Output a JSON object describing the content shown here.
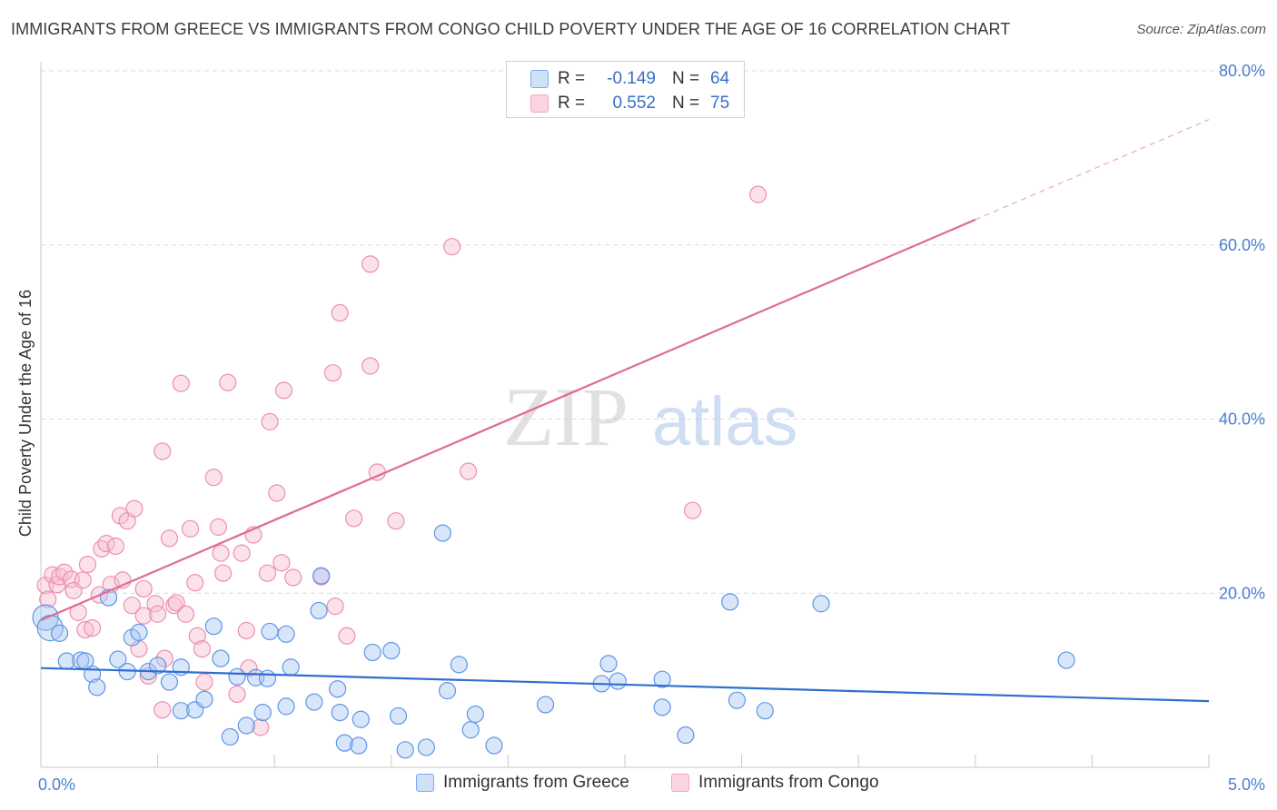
{
  "title": "IMMIGRANTS FROM GREECE VS IMMIGRANTS FROM CONGO CHILD POVERTY UNDER THE AGE OF 16 CORRELATION CHART",
  "source": "Source: ZipAtlas.com",
  "watermark": {
    "zip": "ZIP",
    "atlas": "atlas"
  },
  "correlation_box": {
    "rows": [
      {
        "r_label": "R =",
        "r_value": "-0.149",
        "n_label": "N =",
        "n_value": "64",
        "color": "#7aaaf0"
      },
      {
        "r_label": "R =",
        "r_value": "0.552",
        "n_label": "N =",
        "n_value": "75",
        "color": "#f4a6be"
      }
    ]
  },
  "legend": [
    {
      "label": "Immigrants from Greece",
      "color": "#7aaaf0"
    },
    {
      "label": "Immigrants from Congo",
      "color": "#f4a6be"
    }
  ],
  "chart_data": {
    "type": "scatter",
    "title": "IMMIGRANTS FROM GREECE VS IMMIGRANTS FROM CONGO CHILD POVERTY UNDER THE AGE OF 16 CORRELATION CHART",
    "xlabel": "",
    "ylabel": "Child Poverty Under the Age of 16",
    "xlim": [
      0,
      5
    ],
    "ylim": [
      0,
      80
    ],
    "x_tick_labels": [
      {
        "value": 0,
        "label": "0.0%"
      },
      {
        "value": 5,
        "label": "5.0%"
      }
    ],
    "y_tick_labels": [
      {
        "value": 20,
        "label": "20.0%"
      },
      {
        "value": 40,
        "label": "40.0%"
      },
      {
        "value": 60,
        "label": "60.0%"
      },
      {
        "value": 80,
        "label": "80.0%"
      }
    ],
    "grid": true,
    "legend_position": "bottom",
    "series": [
      {
        "name": "Immigrants from Greece",
        "color": "#7aaaf0",
        "line_color": "#2f6fcf",
        "trend": {
          "x": [
            0,
            5
          ],
          "y": [
            11.4,
            7.6
          ]
        },
        "points": [
          [
            0.02,
            17.2
          ],
          [
            0.04,
            16.0
          ],
          [
            0.08,
            15.4
          ],
          [
            0.11,
            12.2
          ],
          [
            0.17,
            12.3
          ],
          [
            0.19,
            12.2
          ],
          [
            0.22,
            10.7
          ],
          [
            0.24,
            9.2
          ],
          [
            0.29,
            19.5
          ],
          [
            0.33,
            12.4
          ],
          [
            0.37,
            11.0
          ],
          [
            0.39,
            14.9
          ],
          [
            0.42,
            15.5
          ],
          [
            0.46,
            11.0
          ],
          [
            0.5,
            11.7
          ],
          [
            0.55,
            9.8
          ],
          [
            0.6,
            11.5
          ],
          [
            0.6,
            6.5
          ],
          [
            0.66,
            6.6
          ],
          [
            0.7,
            7.8
          ],
          [
            0.74,
            16.2
          ],
          [
            0.77,
            12.5
          ],
          [
            0.81,
            3.5
          ],
          [
            0.84,
            10.4
          ],
          [
            0.88,
            4.8
          ],
          [
            0.92,
            10.3
          ],
          [
            0.95,
            6.3
          ],
          [
            0.97,
            10.2
          ],
          [
            0.98,
            15.6
          ],
          [
            1.05,
            15.3
          ],
          [
            1.05,
            7.0
          ],
          [
            1.07,
            11.5
          ],
          [
            1.17,
            7.5
          ],
          [
            1.19,
            18.0
          ],
          [
            1.2,
            22.0
          ],
          [
            1.27,
            9.0
          ],
          [
            1.28,
            6.3
          ],
          [
            1.3,
            2.8
          ],
          [
            1.36,
            2.5
          ],
          [
            1.37,
            5.5
          ],
          [
            1.42,
            13.2
          ],
          [
            1.5,
            13.4
          ],
          [
            1.53,
            5.9
          ],
          [
            1.56,
            2.0
          ],
          [
            1.65,
            2.3
          ],
          [
            1.72,
            26.9
          ],
          [
            1.74,
            8.8
          ],
          [
            1.79,
            11.8
          ],
          [
            1.84,
            4.3
          ],
          [
            1.86,
            6.1
          ],
          [
            1.94,
            2.5
          ],
          [
            2.16,
            7.2
          ],
          [
            2.4,
            9.6
          ],
          [
            2.43,
            11.9
          ],
          [
            2.47,
            9.9
          ],
          [
            2.66,
            10.1
          ],
          [
            2.66,
            6.9
          ],
          [
            2.76,
            3.7
          ],
          [
            2.95,
            19.0
          ],
          [
            2.98,
            7.7
          ],
          [
            3.1,
            6.5
          ],
          [
            3.34,
            18.8
          ],
          [
            4.39,
            12.3
          ]
        ]
      },
      {
        "name": "Immigrants from Congo",
        "color": "#f4a6be",
        "line_color": "#e06b94",
        "trend": {
          "x": [
            0,
            4.0
          ],
          "y": [
            16.9,
            62.9
          ]
        },
        "trend_dashed": {
          "x": [
            4.0,
            5.0
          ],
          "y": [
            62.9,
            74.4
          ]
        },
        "points": [
          [
            0.02,
            20.9
          ],
          [
            0.03,
            19.3
          ],
          [
            0.05,
            22.1
          ],
          [
            0.07,
            21.0
          ],
          [
            0.08,
            21.9
          ],
          [
            0.1,
            22.4
          ],
          [
            0.13,
            21.6
          ],
          [
            0.14,
            20.3
          ],
          [
            0.16,
            17.8
          ],
          [
            0.18,
            21.5
          ],
          [
            0.19,
            15.8
          ],
          [
            0.2,
            23.3
          ],
          [
            0.22,
            16.0
          ],
          [
            0.25,
            19.8
          ],
          [
            0.26,
            25.1
          ],
          [
            0.28,
            25.7
          ],
          [
            0.3,
            21.0
          ],
          [
            0.32,
            25.4
          ],
          [
            0.34,
            28.9
          ],
          [
            0.35,
            21.5
          ],
          [
            0.37,
            28.3
          ],
          [
            0.39,
            18.6
          ],
          [
            0.4,
            29.7
          ],
          [
            0.42,
            13.6
          ],
          [
            0.44,
            17.4
          ],
          [
            0.44,
            20.5
          ],
          [
            0.46,
            10.5
          ],
          [
            0.49,
            18.8
          ],
          [
            0.5,
            17.6
          ],
          [
            0.52,
            6.6
          ],
          [
            0.52,
            36.3
          ],
          [
            0.53,
            12.5
          ],
          [
            0.55,
            26.3
          ],
          [
            0.57,
            18.6
          ],
          [
            0.58,
            18.9
          ],
          [
            0.6,
            44.1
          ],
          [
            0.62,
            17.6
          ],
          [
            0.64,
            27.4
          ],
          [
            0.66,
            21.2
          ],
          [
            0.67,
            15.1
          ],
          [
            0.69,
            13.6
          ],
          [
            0.7,
            9.8
          ],
          [
            0.74,
            33.3
          ],
          [
            0.76,
            27.6
          ],
          [
            0.77,
            24.6
          ],
          [
            0.78,
            22.3
          ],
          [
            0.8,
            44.2
          ],
          [
            0.84,
            8.4
          ],
          [
            0.86,
            24.6
          ],
          [
            0.88,
            15.7
          ],
          [
            0.89,
            11.4
          ],
          [
            0.91,
            26.7
          ],
          [
            0.94,
            4.6
          ],
          [
            0.97,
            22.3
          ],
          [
            0.98,
            39.7
          ],
          [
            1.01,
            31.5
          ],
          [
            1.03,
            23.5
          ],
          [
            1.04,
            43.3
          ],
          [
            1.08,
            21.8
          ],
          [
            1.2,
            21.9
          ],
          [
            1.25,
            45.3
          ],
          [
            1.26,
            18.5
          ],
          [
            1.28,
            52.2
          ],
          [
            1.31,
            15.1
          ],
          [
            1.34,
            28.6
          ],
          [
            1.41,
            57.8
          ],
          [
            1.41,
            46.1
          ],
          [
            1.44,
            33.9
          ],
          [
            1.52,
            28.3
          ],
          [
            1.76,
            59.8
          ],
          [
            1.83,
            34.0
          ],
          [
            2.79,
            29.5
          ],
          [
            3.07,
            65.8
          ]
        ]
      }
    ]
  }
}
